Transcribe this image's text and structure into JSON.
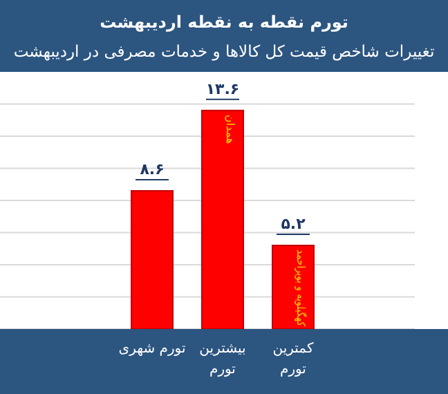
{
  "chart_data": {
    "type": "bar",
    "title": "تورم نقطه به نقطه اردیبهشت",
    "subtitle": "تغییرات شاخص قیمت کل کالاها و خدمات مصرفی در اردیبهشت",
    "categories": [
      "تورم شهری",
      "بیشترین تورم",
      "کمترین تورم"
    ],
    "values": [
      8.6,
      13.6,
      5.2
    ],
    "value_labels": [
      "۸.۶",
      "۱۳.۶",
      "۵.۲"
    ],
    "color": "#ff0000",
    "ylim": [
      0,
      16
    ],
    "yticks": [
      {
        "value": 0,
        "label": null
      },
      {
        "value": 2,
        "label": null
      },
      {
        "value": 4,
        "label": null
      },
      {
        "value": 6,
        "label": null
      },
      {
        "value": 8,
        "label": null
      },
      {
        "value": 10,
        "label": null
      },
      {
        "value": 12,
        "label": null
      },
      {
        "value": 14,
        "label": null
      }
    ],
    "tick_labels": "x",
    "grid": "y",
    "annotations": [
      {
        "text": "همدان",
        "x": "بیشترین تورم",
        "y": 13.6
      },
      {
        "text": "کهگیلویه و بویراحمد",
        "x": "کمترین تورم",
        "y": 5.2
      }
    ]
  }
}
